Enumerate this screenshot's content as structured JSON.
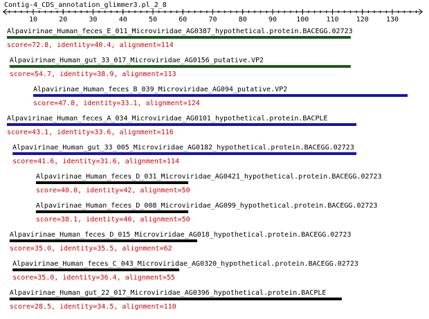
{
  "chart_data": {
    "type": "alignment",
    "title": "Contig-4_CDS_annotation_glimmer3.pl_2_8",
    "xlim": [
      0,
      140
    ],
    "xticks": [
      10,
      20,
      30,
      40,
      50,
      60,
      70,
      80,
      90,
      100,
      110,
      120,
      130
    ],
    "hits": [
      {
        "label": "Alpavirinae_Human_feces_E_011_Microviridae_AG0387_hypothetical.protein.BACEGG.02723",
        "score": "score=72.8, identity=40.4, alignment=114",
        "start": 1.2,
        "end": 116.1,
        "color": "#1e5a1e"
      },
      {
        "label": "Alpavirinae_Human_gut_33_017_Microviridae_AG0156_putative.VP2",
        "score": "score=54.7, identity=38.9, alignment=113",
        "start": 2.1,
        "end": 116.1,
        "color": "#1e5a1e"
      },
      {
        "label": "Alpavirinae_Human_feces_B_039_Microviridae_AG094_putative.VP2",
        "score": "score=47.8, identity=33.1, alignment=124",
        "start": 10,
        "end": 135.1,
        "color": "#1414b4"
      },
      {
        "label": "Alpavirinae_Human_feces_A_034_Microviridae_AG0101_hypothetical.protein.BACPLE",
        "score": "score=43.1, identity=33.6, alignment=116",
        "start": 1.2,
        "end": 118,
        "color": "#1414b4"
      },
      {
        "label": "Alpavirinae_Human_gut_33_005_Microviridae_AG0182_hypothetical.protein.BACEGG.02723",
        "score": "score=41.6, identity=31.6, alignment=114",
        "start": 3.1,
        "end": 118,
        "color": "#1414b4"
      },
      {
        "label": "Alpavirinae_Human_feces_D_031_Microviridae_AG0421_hypothetical.protein.BACEGG.02723",
        "score": "score=40.0, identity=42, alignment=50",
        "start": 10.9,
        "end": 61.8,
        "color": "#000000"
      },
      {
        "label": "Alpavirinae_Human_feces_D_008_Microviridae_AG099_hypothetical.protein.BACEGG.02723",
        "score": "score=38.1, identity=40, alignment=50",
        "start": 10.9,
        "end": 61.8,
        "color": "#000000"
      },
      {
        "label": "Alpavirinae_Human_feces_D_015_Microviridae_AG018_hypothetical.protein.BACEGG.02723",
        "score": "score=35.0, identity=35.5, alignment=62",
        "start": 2.1,
        "end": 64.8,
        "color": "#000000"
      },
      {
        "label": "Alpavirinae_Human_feces_C_043_Microviridae_AG0320_hypothetical.protein.BACEGG.02723",
        "score": "score=35.0, identity=36.4, alignment=55",
        "start": 3.1,
        "end": 58.8,
        "color": "#000000"
      },
      {
        "label": "Alpavirinae_Human_gut_22_017_Microviridae_AG0396_hypothetical.protein.BACPLE",
        "score": "score=28.5, identity=34.5, alignment=110",
        "start": 2.1,
        "end": 113.1,
        "color": "#000000"
      }
    ]
  }
}
